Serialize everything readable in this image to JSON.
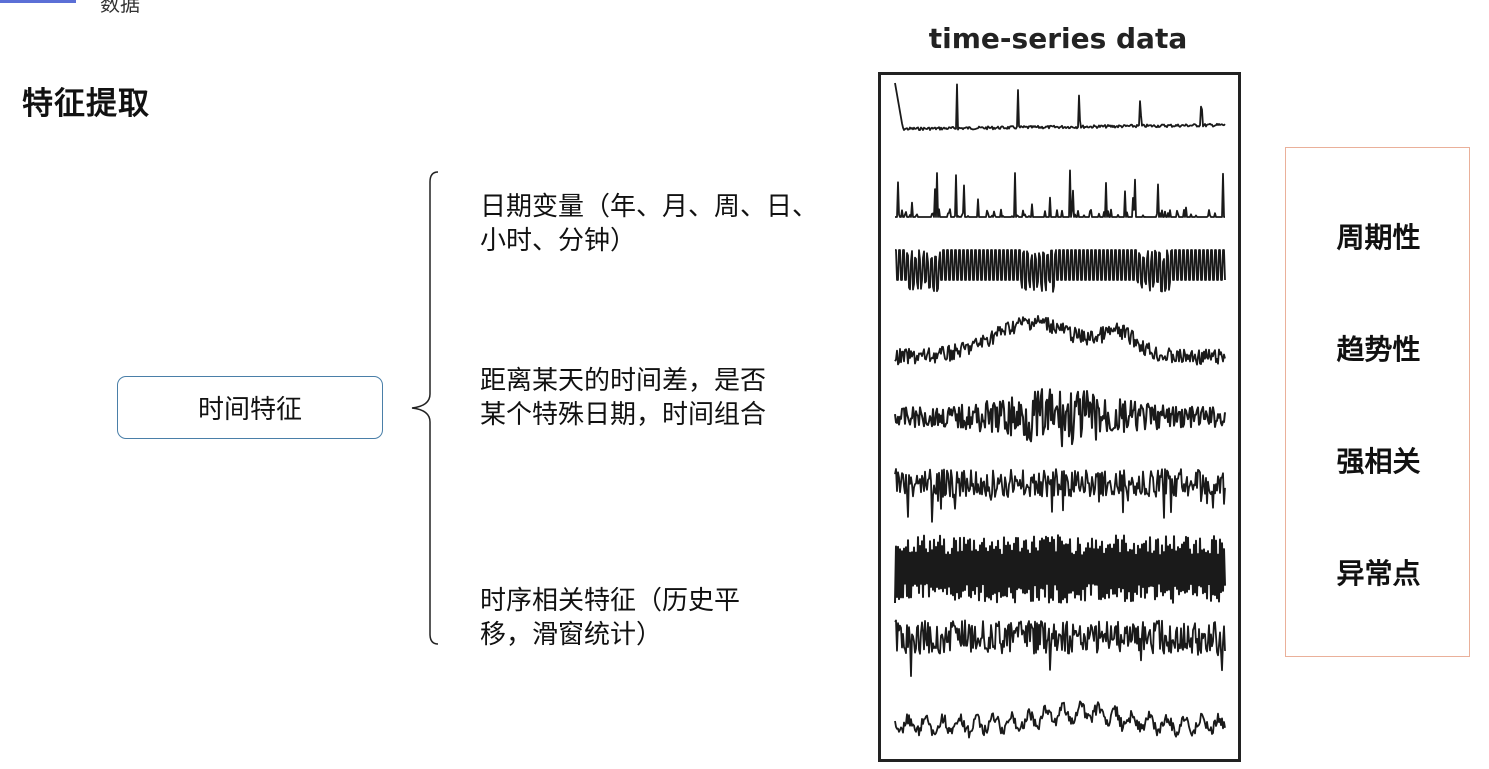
{
  "header": {
    "tab_text": "数据"
  },
  "page_title": "特征提取",
  "root": {
    "label": "时间特征"
  },
  "branches": [
    {
      "lines": [
        "日期变量（年、月、周、日、",
        "小时、分钟）"
      ]
    },
    {
      "lines": [
        "距离某天的时间差，是否",
        "某个特殊日期，时间组合"
      ]
    },
    {
      "lines": [
        "时序相关特征（历史平",
        "移，滑窗统计）"
      ]
    }
  ],
  "chart_title": "time-series data",
  "properties": [
    "周期性",
    "趋势性",
    "强相关",
    "异常点"
  ],
  "colors": {
    "root_border": "#4a7fa8",
    "props_border": "#eab09a",
    "frame": "#222222"
  }
}
